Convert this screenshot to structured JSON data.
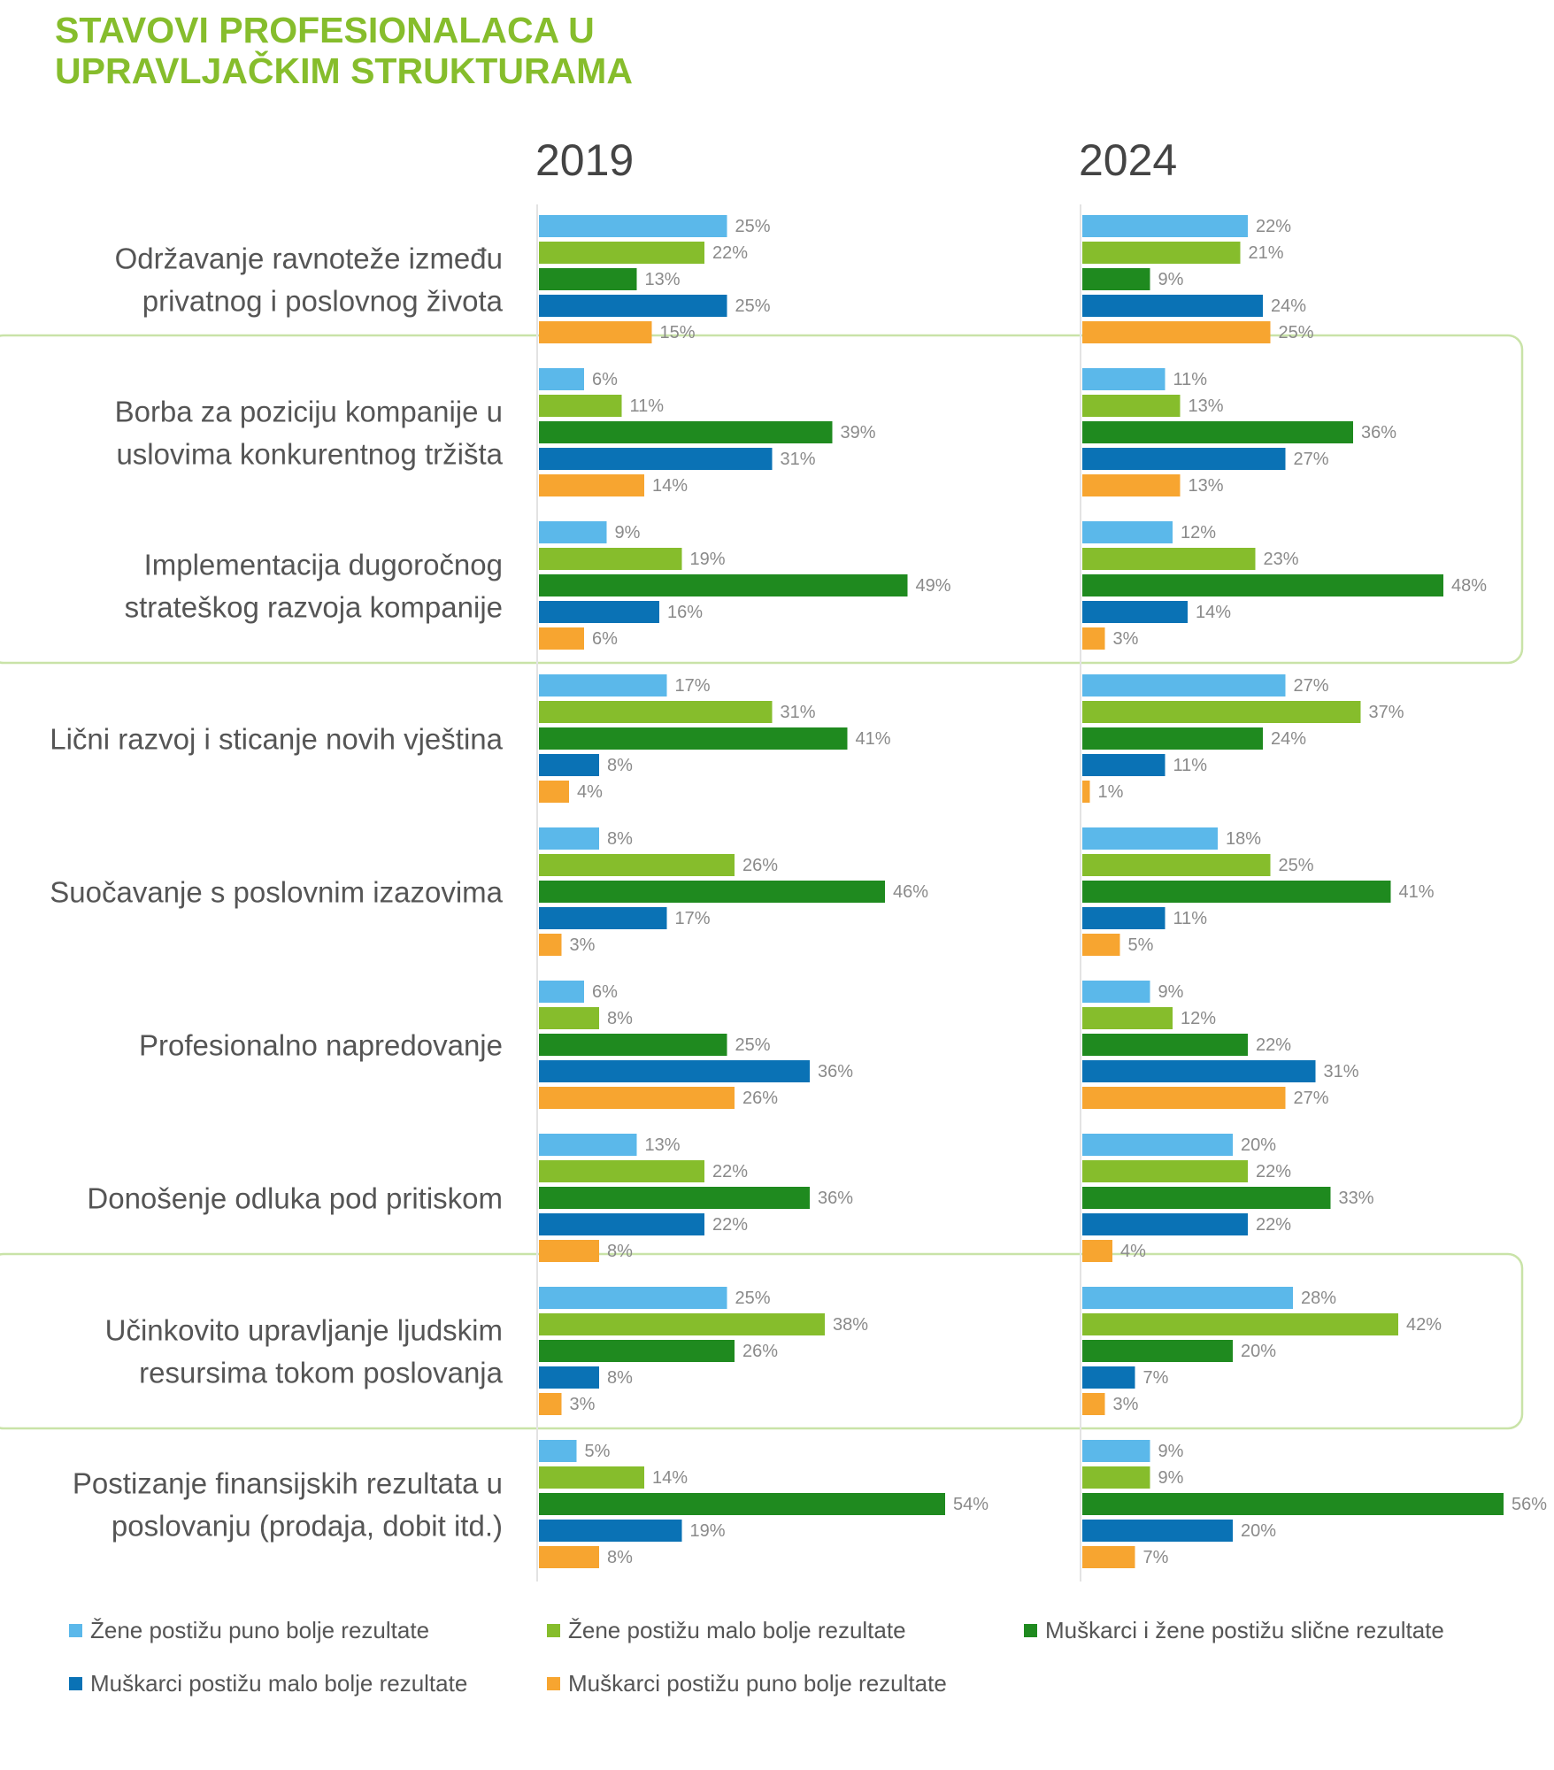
{
  "chart_data": {
    "type": "bar",
    "title": "STAVOVI PROFESIONALACA U UPRAVLJAČKIM STRUKTURAMA",
    "title_lines": [
      "STAVOVI PROFESIONALACA U",
      "UPRAVLJAČKIM STRUKTURAMA"
    ],
    "orientation": "horizontal",
    "value_suffix": "%",
    "legend_position": "bottom",
    "panels": [
      "2019",
      "2024"
    ],
    "categories": [
      [
        "Održavanje ravnoteže između",
        "privatnog i poslovnog života"
      ],
      [
        "Borba za poziciju kompanije u",
        "uslovima konkurentnog tržišta"
      ],
      [
        "Implementacija dugoročnog",
        "strateškog razvoja kompanije"
      ],
      [
        "Lični razvoj i sticanje novih vještina"
      ],
      [
        "Suočavanje s poslovnim izazovima"
      ],
      [
        "Profesionalno napredovanje"
      ],
      [
        "Donošenje odluka pod pritiskom"
      ],
      [
        "Učinkovito upravljanje ljudskim",
        "resursima tokom poslovanja"
      ],
      [
        "Postizanje finansijskih rezultata u",
        "poslovanju (prodaja, dobit itd.)"
      ]
    ],
    "highlighted_groups": [
      [
        1,
        2
      ],
      [
        7
      ]
    ],
    "series": [
      {
        "name": "Žene postižu puno bolje rezultate",
        "color": "#5bb8ea",
        "values_2019": [
          25,
          6,
          9,
          17,
          8,
          6,
          13,
          25,
          5
        ],
        "values_2024": [
          22,
          11,
          12,
          27,
          18,
          9,
          20,
          28,
          9
        ]
      },
      {
        "name": "Žene postižu malo bolje rezultate",
        "color": "#86bd2c",
        "values_2019": [
          22,
          11,
          19,
          31,
          26,
          8,
          22,
          38,
          14
        ],
        "values_2024": [
          21,
          13,
          23,
          37,
          25,
          12,
          22,
          42,
          9
        ]
      },
      {
        "name": "Muškarci i žene postižu slične rezultate",
        "color": "#1f8a1f",
        "values_2019": [
          13,
          39,
          49,
          41,
          46,
          25,
          36,
          26,
          54
        ],
        "values_2024": [
          9,
          36,
          48,
          24,
          41,
          22,
          33,
          20,
          56
        ]
      },
      {
        "name": "Muškarci postižu malo bolje rezultate",
        "color": "#0a72b5",
        "values_2019": [
          25,
          31,
          16,
          8,
          17,
          36,
          22,
          8,
          19
        ],
        "values_2024": [
          24,
          27,
          14,
          11,
          11,
          31,
          22,
          7,
          20
        ]
      },
      {
        "name": "Muškarci postižu puno bolje rezultate",
        "color": "#f7a530",
        "values_2019": [
          15,
          14,
          6,
          4,
          3,
          26,
          8,
          3,
          8
        ],
        "values_2024": [
          25,
          13,
          3,
          1,
          5,
          27,
          4,
          3,
          7
        ]
      }
    ],
    "title_color": "#86bd2c",
    "highlight_border_color": "#c9e3a8",
    "text_color": "#555555"
  }
}
